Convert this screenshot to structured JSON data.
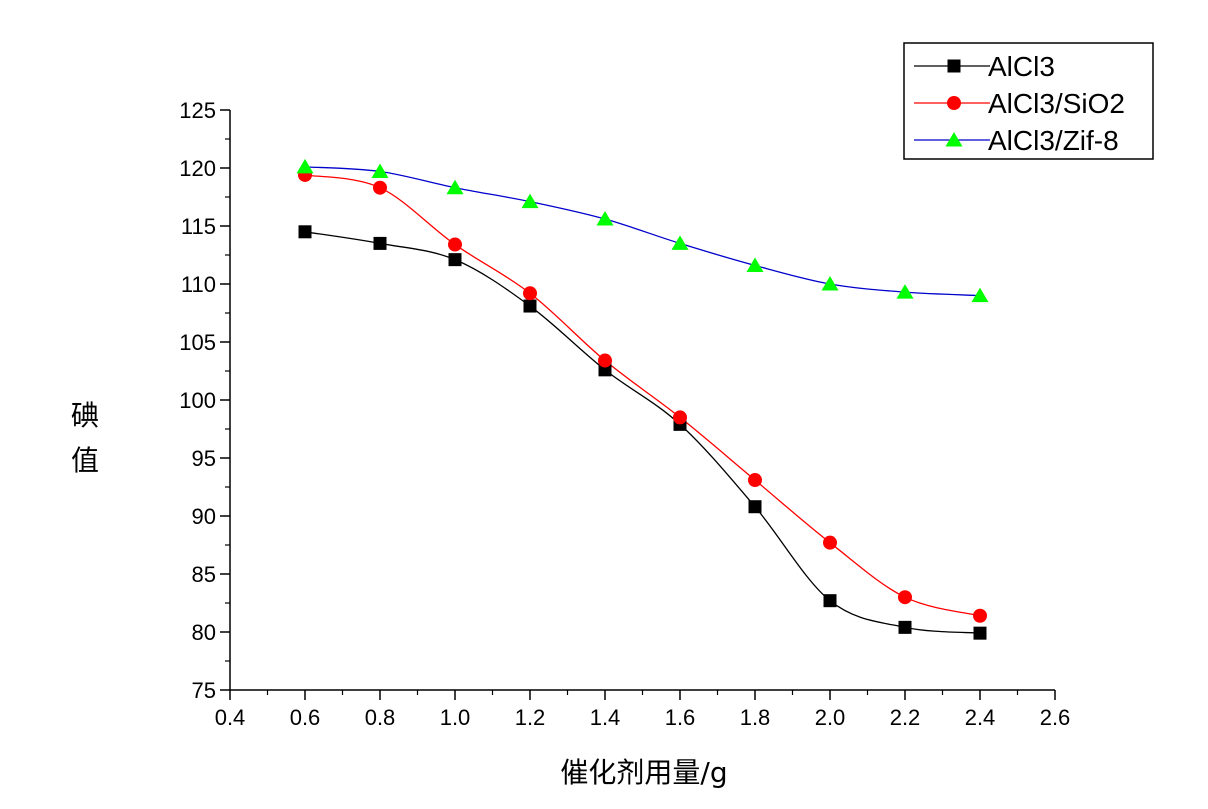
{
  "chart_data": {
    "type": "line",
    "title": "",
    "xlabel": "催化剂用量/g",
    "ylabel": "碘值",
    "xlim": [
      0.4,
      2.6
    ],
    "ylim": [
      75,
      125
    ],
    "x_ticks": [
      0.4,
      0.6,
      0.8,
      1.0,
      1.2,
      1.4,
      1.6,
      1.8,
      2.0,
      2.2,
      2.4,
      2.6
    ],
    "x_tick_labels": [
      "0.4",
      "0.6",
      "0.8",
      "1.0",
      "1.2",
      "1.4",
      "1.6",
      "1.8",
      "2.0",
      "2.2",
      "2.4",
      "2.6"
    ],
    "y_ticks": [
      75,
      80,
      85,
      90,
      95,
      100,
      105,
      110,
      115,
      120,
      125
    ],
    "y_tick_labels": [
      "75",
      "80",
      "85",
      "90",
      "95",
      "100",
      "105",
      "110",
      "115",
      "120",
      "125"
    ],
    "grid": false,
    "legend_position": "top-right",
    "x": [
      0.6,
      0.8,
      1.0,
      1.2,
      1.4,
      1.6,
      1.8,
      2.0,
      2.2,
      2.4
    ],
    "series": [
      {
        "name": "AlCl3",
        "marker": "square",
        "line_color": "#000000",
        "marker_color": "#000000",
        "values": [
          114.5,
          113.5,
          112.1,
          108.1,
          102.6,
          97.9,
          90.8,
          82.7,
          80.4,
          79.9
        ]
      },
      {
        "name": "AlCl3/SiO2",
        "marker": "circle",
        "line_color": "#ff0000",
        "marker_color": "#ff0000",
        "values": [
          119.4,
          118.3,
          113.4,
          109.2,
          103.4,
          98.5,
          93.1,
          87.7,
          83.0,
          81.4
        ]
      },
      {
        "name": "AlCl3/Zif-8",
        "marker": "triangle",
        "line_color": "#0000cc",
        "marker_color": "#00ff00",
        "values": [
          120.1,
          119.7,
          118.3,
          117.1,
          115.6,
          113.5,
          111.6,
          110.0,
          109.3,
          109.0
        ]
      }
    ]
  }
}
